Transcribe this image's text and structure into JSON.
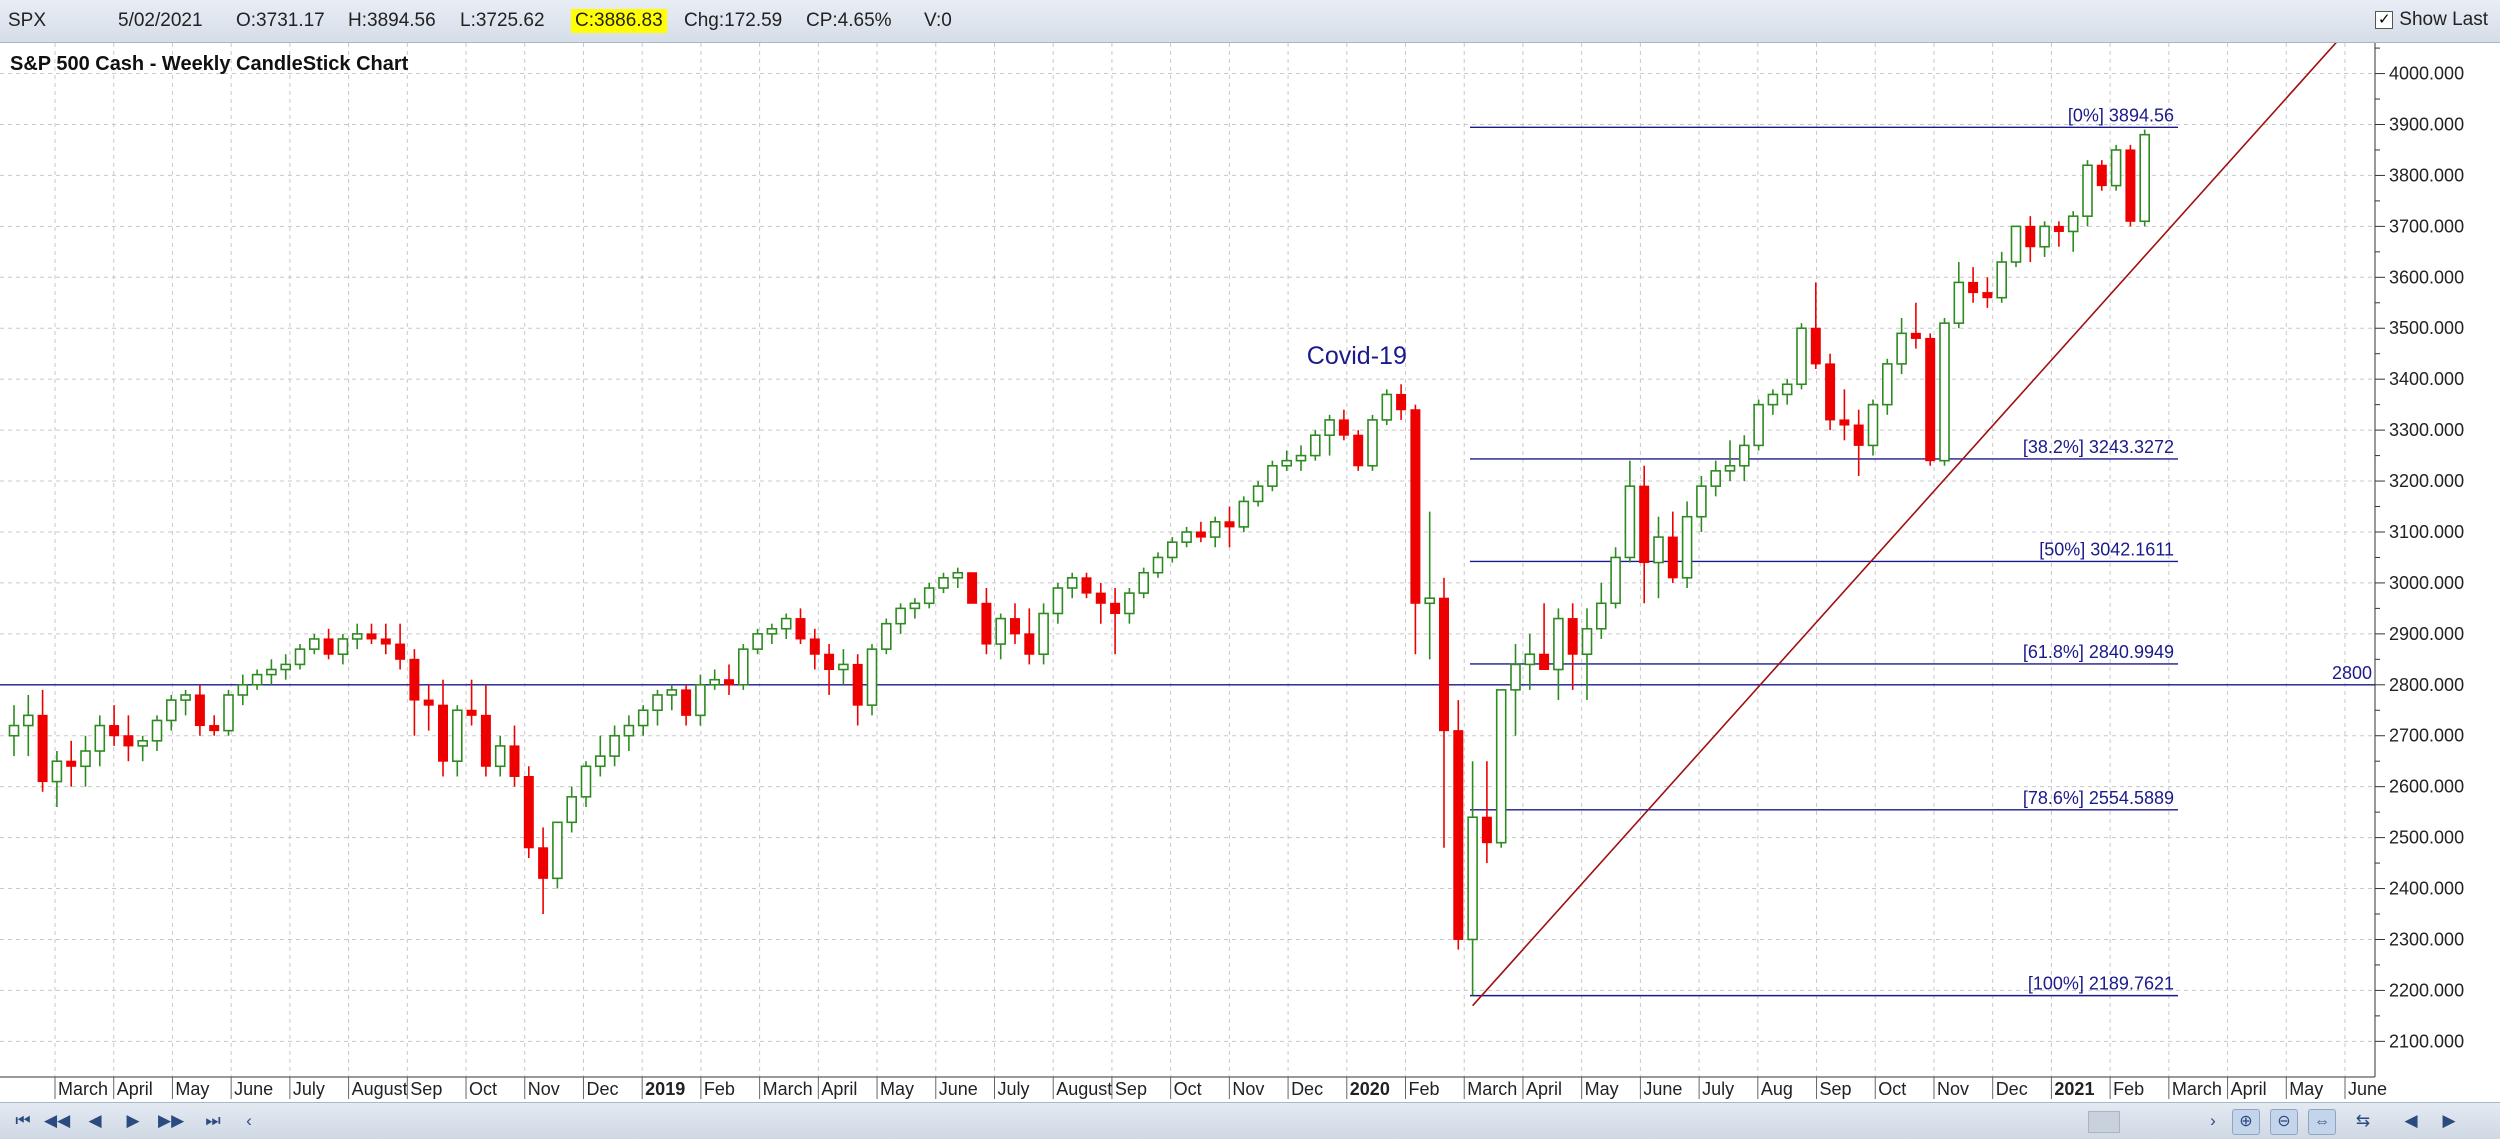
{
  "header": {
    "symbol": "SPX",
    "date": "5/02/2021",
    "open": "O:3731.17",
    "high": "H:3894.56",
    "low": "L:3725.62",
    "close": "C:3886.83",
    "change": "Chg:172.59",
    "change_pct": "CP:4.65%",
    "volume": "V:0",
    "show_last_label": "Show Last",
    "show_last_checked": "✓",
    "close_highlight_color": "#ffff00"
  },
  "chart_data": {
    "type": "candlestick",
    "title": "S&P 500 Cash - Weekly CandleStick Chart",
    "y_axis": {
      "ylim": [
        2030,
        4060
      ],
      "ticks": [
        2100,
        2200,
        2300,
        2400,
        2500,
        2600,
        2700,
        2800,
        2900,
        3000,
        3100,
        3200,
        3300,
        3400,
        3500,
        3600,
        3700,
        3800,
        3900,
        4000
      ],
      "tick_labels": [
        "2100.000",
        "2200.000",
        "2300.000",
        "2400.000",
        "2500.000",
        "2600.000",
        "2700.000",
        "2800.000",
        "2900.000",
        "3000.000",
        "3100.000",
        "3200.000",
        "3300.000",
        "3400.000",
        "3500.000",
        "3600.000",
        "3700.000",
        "3800.000",
        "3900.000",
        "4000.000"
      ],
      "position": "right"
    },
    "x_axis": {
      "labels": [
        {
          "text": "March",
          "bold": false
        },
        {
          "text": "April",
          "bold": false
        },
        {
          "text": "May",
          "bold": false
        },
        {
          "text": "June",
          "bold": false
        },
        {
          "text": "July",
          "bold": false
        },
        {
          "text": "August",
          "bold": false
        },
        {
          "text": "Sep",
          "bold": false
        },
        {
          "text": "Oct",
          "bold": false
        },
        {
          "text": "Nov",
          "bold": false
        },
        {
          "text": "Dec",
          "bold": false
        },
        {
          "text": "2019",
          "bold": true
        },
        {
          "text": "Feb",
          "bold": false
        },
        {
          "text": "March",
          "bold": false
        },
        {
          "text": "April",
          "bold": false
        },
        {
          "text": "May",
          "bold": false
        },
        {
          "text": "June",
          "bold": false
        },
        {
          "text": "July",
          "bold": false
        },
        {
          "text": "August",
          "bold": false
        },
        {
          "text": "Sep",
          "bold": false
        },
        {
          "text": "Oct",
          "bold": false
        },
        {
          "text": "Nov",
          "bold": false
        },
        {
          "text": "Dec",
          "bold": false
        },
        {
          "text": "2020",
          "bold": true
        },
        {
          "text": "Feb",
          "bold": false
        },
        {
          "text": "March",
          "bold": false
        },
        {
          "text": "April",
          "bold": false
        },
        {
          "text": "May",
          "bold": false
        },
        {
          "text": "June",
          "bold": false
        },
        {
          "text": "July",
          "bold": false
        },
        {
          "text": "Aug",
          "bold": false
        },
        {
          "text": "Sep",
          "bold": false
        },
        {
          "text": "Oct",
          "bold": false
        },
        {
          "text": "Nov",
          "bold": false
        },
        {
          "text": "Dec",
          "bold": false
        },
        {
          "text": "2021",
          "bold": true
        },
        {
          "text": "Feb",
          "bold": false
        },
        {
          "text": "March",
          "bold": false
        },
        {
          "text": "April",
          "bold": false
        },
        {
          "text": "May",
          "bold": false
        },
        {
          "text": "June",
          "bold": false
        }
      ]
    },
    "grid": true,
    "candles": [
      [
        2700,
        2760,
        2660,
        2720
      ],
      [
        2720,
        2780,
        2660,
        2740
      ],
      [
        2740,
        2790,
        2590,
        2610
      ],
      [
        2610,
        2670,
        2560,
        2650
      ],
      [
        2650,
        2690,
        2600,
        2640
      ],
      [
        2640,
        2700,
        2600,
        2670
      ],
      [
        2670,
        2740,
        2640,
        2720
      ],
      [
        2720,
        2760,
        2680,
        2700
      ],
      [
        2700,
        2740,
        2650,
        2680
      ],
      [
        2680,
        2700,
        2650,
        2690
      ],
      [
        2690,
        2740,
        2670,
        2730
      ],
      [
        2730,
        2780,
        2710,
        2770
      ],
      [
        2770,
        2790,
        2740,
        2780
      ],
      [
        2780,
        2800,
        2700,
        2720
      ],
      [
        2720,
        2740,
        2700,
        2710
      ],
      [
        2710,
        2790,
        2700,
        2780
      ],
      [
        2780,
        2820,
        2760,
        2800
      ],
      [
        2800,
        2830,
        2790,
        2820
      ],
      [
        2820,
        2850,
        2800,
        2830
      ],
      [
        2830,
        2860,
        2810,
        2840
      ],
      [
        2840,
        2880,
        2830,
        2870
      ],
      [
        2870,
        2900,
        2860,
        2890
      ],
      [
        2890,
        2910,
        2850,
        2860
      ],
      [
        2860,
        2900,
        2840,
        2890
      ],
      [
        2890,
        2920,
        2870,
        2900
      ],
      [
        2900,
        2920,
        2880,
        2890
      ],
      [
        2890,
        2920,
        2860,
        2880
      ],
      [
        2880,
        2920,
        2830,
        2850
      ],
      [
        2850,
        2870,
        2700,
        2770
      ],
      [
        2770,
        2800,
        2710,
        2760
      ],
      [
        2760,
        2810,
        2620,
        2650
      ],
      [
        2650,
        2760,
        2620,
        2750
      ],
      [
        2750,
        2810,
        2720,
        2740
      ],
      [
        2740,
        2800,
        2620,
        2640
      ],
      [
        2640,
        2700,
        2620,
        2680
      ],
      [
        2680,
        2720,
        2600,
        2620
      ],
      [
        2620,
        2640,
        2460,
        2480
      ],
      [
        2480,
        2520,
        2350,
        2420
      ],
      [
        2420,
        2530,
        2400,
        2530
      ],
      [
        2530,
        2600,
        2510,
        2580
      ],
      [
        2580,
        2650,
        2560,
        2640
      ],
      [
        2640,
        2700,
        2620,
        2660
      ],
      [
        2660,
        2720,
        2640,
        2700
      ],
      [
        2700,
        2740,
        2670,
        2720
      ],
      [
        2720,
        2760,
        2700,
        2750
      ],
      [
        2750,
        2790,
        2720,
        2780
      ],
      [
        2780,
        2800,
        2750,
        2790
      ],
      [
        2790,
        2800,
        2720,
        2740
      ],
      [
        2740,
        2820,
        2720,
        2800
      ],
      [
        2800,
        2830,
        2790,
        2810
      ],
      [
        2810,
        2840,
        2780,
        2800
      ],
      [
        2800,
        2880,
        2790,
        2870
      ],
      [
        2870,
        2910,
        2860,
        2900
      ],
      [
        2900,
        2920,
        2880,
        2910
      ],
      [
        2910,
        2940,
        2890,
        2930
      ],
      [
        2930,
        2950,
        2880,
        2890
      ],
      [
        2890,
        2910,
        2830,
        2860
      ],
      [
        2860,
        2880,
        2780,
        2830
      ],
      [
        2830,
        2870,
        2800,
        2840
      ],
      [
        2840,
        2860,
        2720,
        2760
      ],
      [
        2760,
        2880,
        2740,
        2870
      ],
      [
        2870,
        2930,
        2860,
        2920
      ],
      [
        2920,
        2960,
        2900,
        2950
      ],
      [
        2950,
        2970,
        2930,
        2960
      ],
      [
        2960,
        3000,
        2950,
        2990
      ],
      [
        2990,
        3020,
        2980,
        3010
      ],
      [
        3010,
        3030,
        2990,
        3020
      ],
      [
        3020,
        3020,
        2960,
        2960
      ],
      [
        2960,
        2990,
        2860,
        2880
      ],
      [
        2880,
        2940,
        2850,
        2930
      ],
      [
        2930,
        2960,
        2880,
        2900
      ],
      [
        2900,
        2950,
        2840,
        2860
      ],
      [
        2860,
        2960,
        2840,
        2940
      ],
      [
        2940,
        3000,
        2920,
        2990
      ],
      [
        2990,
        3020,
        2970,
        3010
      ],
      [
        3010,
        3020,
        2970,
        2980
      ],
      [
        2980,
        3000,
        2920,
        2960
      ],
      [
        2960,
        2990,
        2860,
        2940
      ],
      [
        2940,
        2990,
        2920,
        2980
      ],
      [
        2980,
        3030,
        2970,
        3020
      ],
      [
        3020,
        3060,
        3010,
        3050
      ],
      [
        3050,
        3090,
        3040,
        3080
      ],
      [
        3080,
        3110,
        3070,
        3100
      ],
      [
        3100,
        3120,
        3080,
        3090
      ],
      [
        3090,
        3130,
        3070,
        3120
      ],
      [
        3120,
        3150,
        3070,
        3110
      ],
      [
        3110,
        3170,
        3100,
        3160
      ],
      [
        3160,
        3200,
        3150,
        3190
      ],
      [
        3190,
        3240,
        3180,
        3230
      ],
      [
        3230,
        3260,
        3220,
        3240
      ],
      [
        3240,
        3270,
        3220,
        3250
      ],
      [
        3250,
        3300,
        3240,
        3290
      ],
      [
        3290,
        3330,
        3250,
        3320
      ],
      [
        3320,
        3340,
        3280,
        3290
      ],
      [
        3290,
        3300,
        3220,
        3230
      ],
      [
        3230,
        3330,
        3220,
        3320
      ],
      [
        3320,
        3380,
        3310,
        3370
      ],
      [
        3370,
        3390,
        3320,
        3340
      ],
      [
        3340,
        3350,
        2860,
        2960
      ],
      [
        2960,
        3140,
        2850,
        2970
      ],
      [
        2970,
        3010,
        2480,
        2710
      ],
      [
        2710,
        2770,
        2280,
        2300
      ],
      [
        2300,
        2650,
        2190,
        2540
      ],
      [
        2540,
        2650,
        2450,
        2490
      ],
      [
        2490,
        2790,
        2480,
        2790
      ],
      [
        2790,
        2880,
        2700,
        2840
      ],
      [
        2840,
        2900,
        2790,
        2860
      ],
      [
        2860,
        2960,
        2830,
        2830
      ],
      [
        2830,
        2950,
        2770,
        2930
      ],
      [
        2930,
        2960,
        2790,
        2860
      ],
      [
        2860,
        2950,
        2770,
        2910
      ],
      [
        2910,
        3000,
        2890,
        2960
      ],
      [
        2960,
        3070,
        2950,
        3050
      ],
      [
        3050,
        3240,
        3040,
        3190
      ],
      [
        3190,
        3230,
        2960,
        3040
      ],
      [
        3040,
        3130,
        2970,
        3090
      ],
      [
        3090,
        3140,
        3000,
        3010
      ],
      [
        3010,
        3160,
        2990,
        3130
      ],
      [
        3130,
        3210,
        3100,
        3190
      ],
      [
        3190,
        3240,
        3170,
        3220
      ],
      [
        3220,
        3280,
        3200,
        3230
      ],
      [
        3230,
        3290,
        3200,
        3270
      ],
      [
        3270,
        3360,
        3260,
        3350
      ],
      [
        3350,
        3380,
        3330,
        3370
      ],
      [
        3370,
        3400,
        3350,
        3390
      ],
      [
        3390,
        3510,
        3380,
        3500
      ],
      [
        3500,
        3590,
        3420,
        3430
      ],
      [
        3430,
        3450,
        3300,
        3320
      ],
      [
        3320,
        3380,
        3280,
        3310
      ],
      [
        3310,
        3340,
        3210,
        3270
      ],
      [
        3270,
        3360,
        3250,
        3350
      ],
      [
        3350,
        3440,
        3330,
        3430
      ],
      [
        3430,
        3520,
        3410,
        3490
      ],
      [
        3490,
        3550,
        3460,
        3480
      ],
      [
        3480,
        3490,
        3230,
        3240
      ],
      [
        3240,
        3520,
        3230,
        3510
      ],
      [
        3510,
        3630,
        3500,
        3590
      ],
      [
        3590,
        3620,
        3550,
        3570
      ],
      [
        3570,
        3600,
        3540,
        3560
      ],
      [
        3560,
        3650,
        3550,
        3630
      ],
      [
        3630,
        3700,
        3620,
        3700
      ],
      [
        3700,
        3720,
        3630,
        3660
      ],
      [
        3660,
        3710,
        3640,
        3700
      ],
      [
        3700,
        3710,
        3660,
        3690
      ],
      [
        3690,
        3730,
        3650,
        3720
      ],
      [
        3720,
        3830,
        3700,
        3820
      ],
      [
        3820,
        3830,
        3770,
        3780
      ],
      [
        3780,
        3860,
        3770,
        3850
      ],
      [
        3850,
        3860,
        3700,
        3710
      ],
      [
        3710,
        3890,
        3700,
        3880
      ]
    ],
    "last_candle_open_marker": "#1f3fd0",
    "up_color": "#2e8b22",
    "down_color": "#ee0000",
    "fibonacci_retracement": {
      "levels": [
        {
          "label": "[0%] 3894.56",
          "value": 3894.56
        },
        {
          "label": "[38.2%] 3243.3272",
          "value": 3243.3272
        },
        {
          "label": "[50%] 3042.1611",
          "value": 3042.1611
        },
        {
          "label": "[61.8%] 2840.9949",
          "value": 2840.9949
        },
        {
          "label": "[78.6%] 2554.5889",
          "value": 2554.5889
        },
        {
          "label": "[100%] 2189.7621",
          "value": 2189.7621
        }
      ],
      "color": "#1a1a8c"
    },
    "horizontal_line": {
      "value": 2800,
      "label": "2800",
      "color": "#1a1a8c"
    },
    "trendline": {
      "from": [
        102,
        2170
      ],
      "to": [
        163,
        4080
      ],
      "color": "#a01010"
    },
    "annotations": [
      {
        "text": "Covid-19",
        "x_index": 96,
        "y": 3430,
        "color": "#1a1a8c"
      }
    ]
  },
  "footer": {
    "nav_icons": [
      "first-icon",
      "prev-page-icon",
      "prev-icon",
      "next-icon",
      "next-page-icon",
      "last-icon"
    ],
    "nav_glyphs": [
      "⏮",
      "◀◀",
      "◀",
      "▶",
      "▶▶",
      "⏭"
    ],
    "scroll_left": "‹",
    "scroll_right": "›",
    "tool_glyphs": [
      "⊕",
      "⊖",
      "⇔",
      "⇆",
      "◀",
      "▶"
    ]
  }
}
